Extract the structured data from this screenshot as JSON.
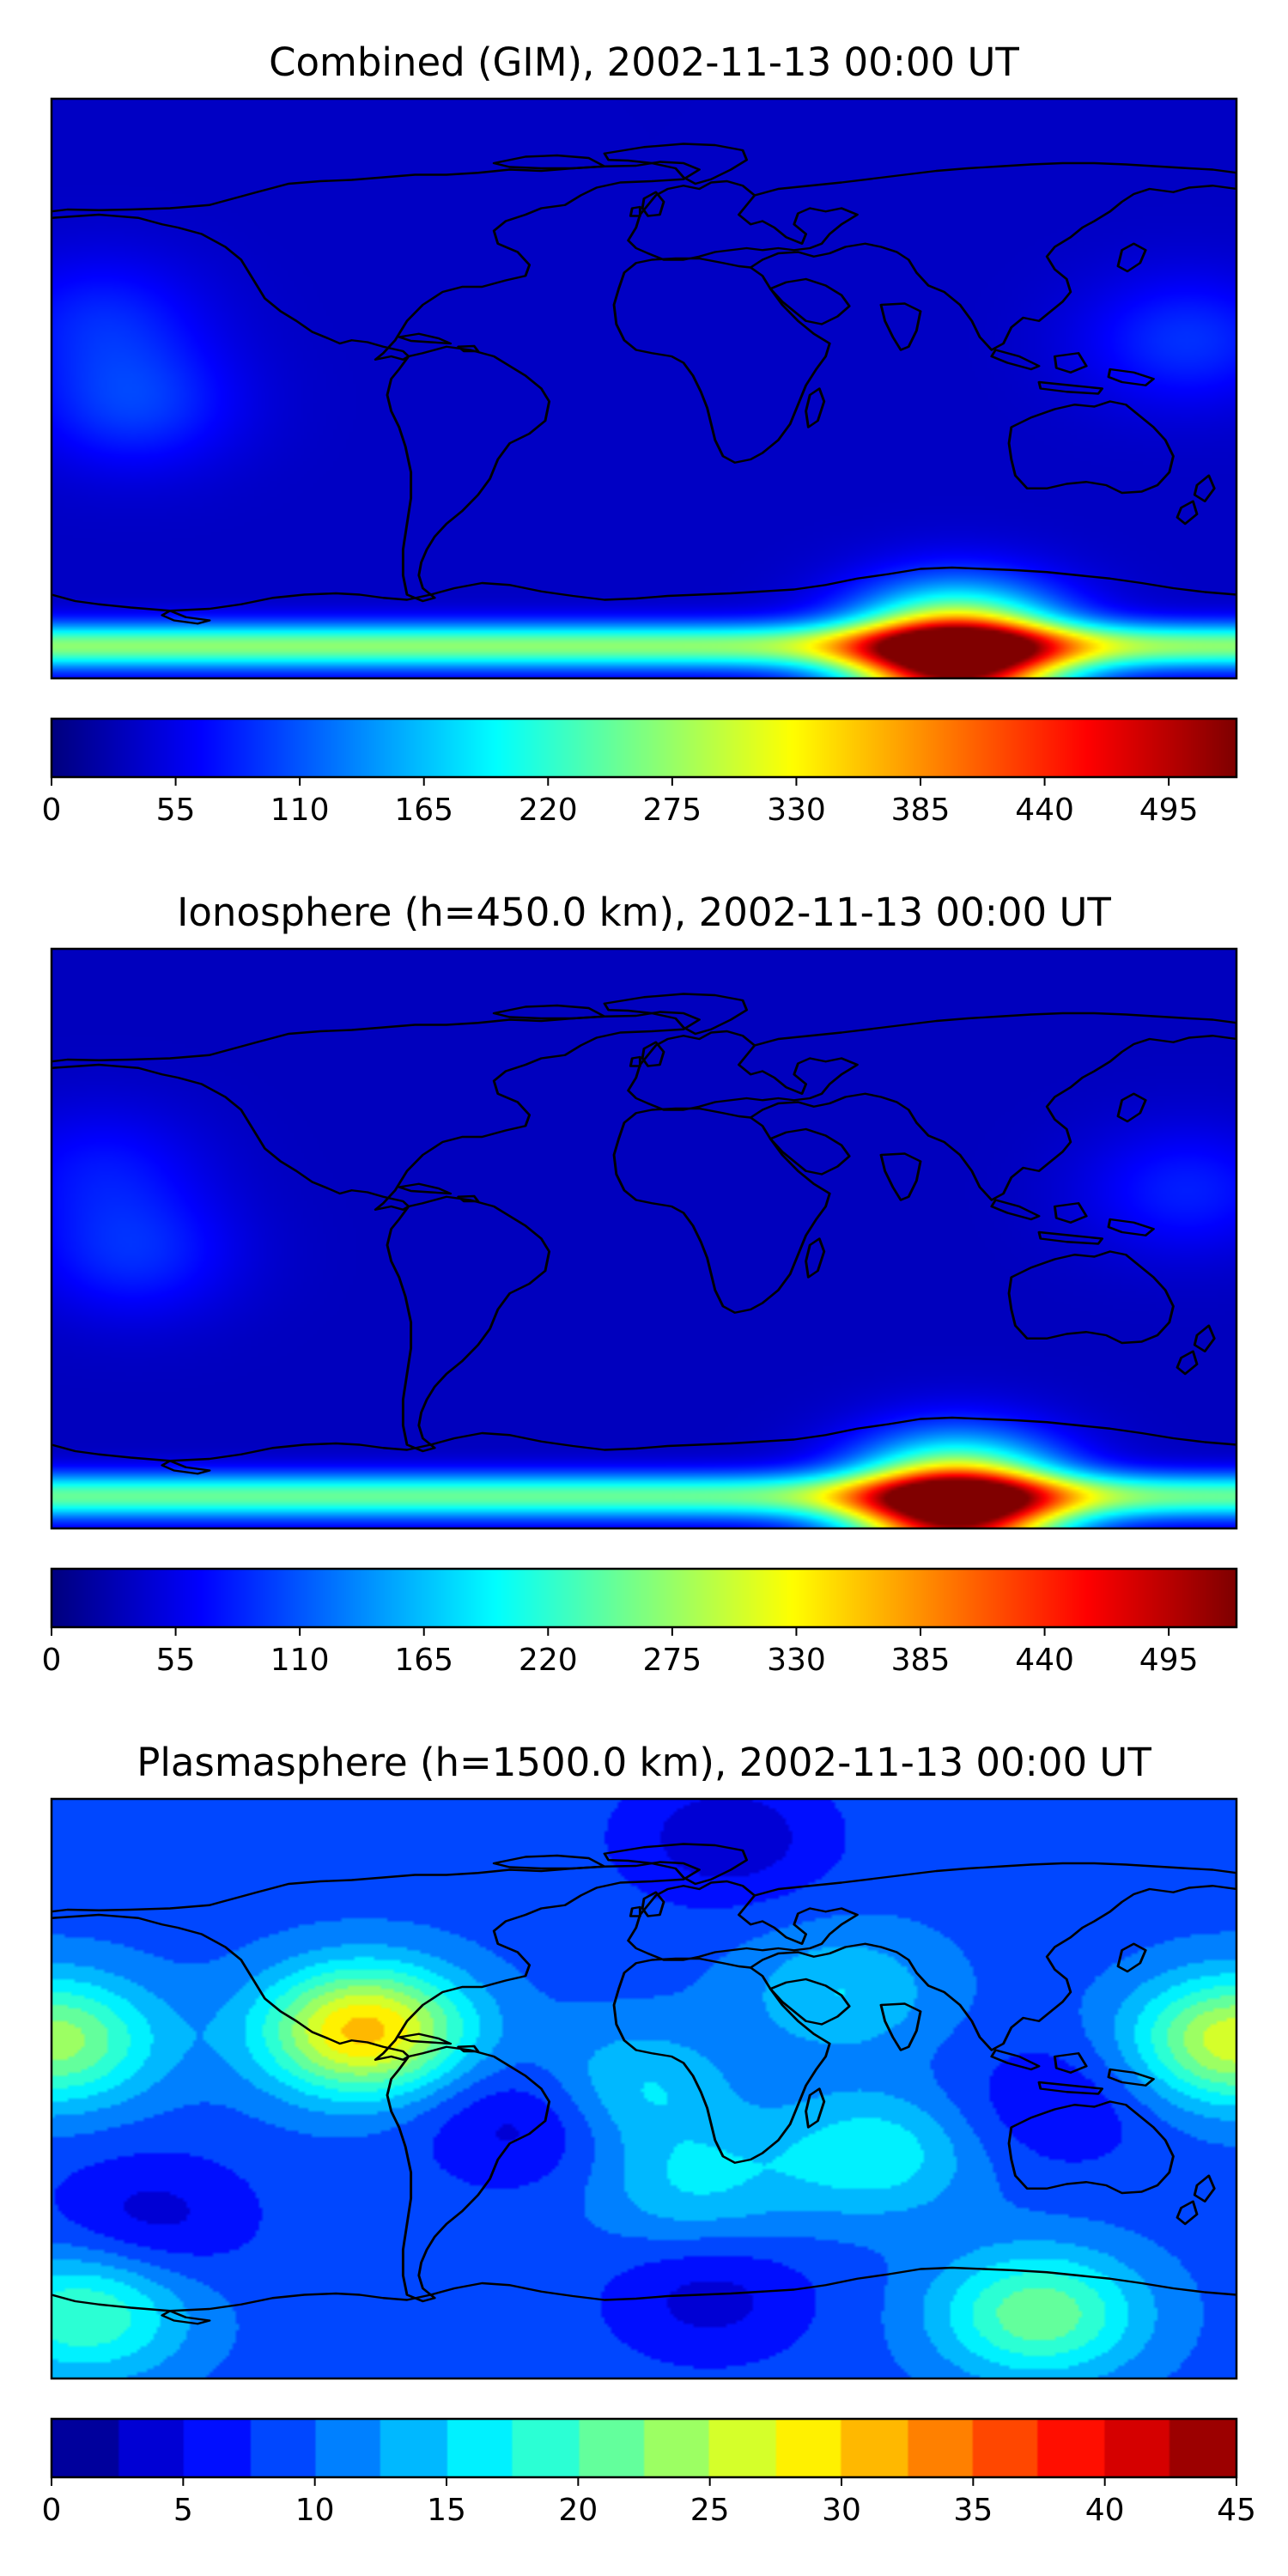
{
  "chart_data": [
    {
      "type": "heatmap",
      "title": "Combined (GIM), 2002-11-13 00:00 UT",
      "colorbar": {
        "ticks": [
          "0",
          "55",
          "110",
          "165",
          "220",
          "275",
          "330",
          "385",
          "440",
          "495"
        ],
        "range": [
          0,
          525
        ],
        "colormap": "jet",
        "style": "continuous"
      },
      "field": {
        "background": 35,
        "features": [
          {
            "label": "south-polar high",
            "lon": 95,
            "lat": -85,
            "value": 520
          },
          {
            "label": "antarctic rim band",
            "lat": -80,
            "value": 270
          },
          {
            "label": "west Pacific tongue",
            "lon": -155,
            "lat": -5,
            "value": 95
          },
          {
            "label": "west Pacific upper lobe",
            "lon": -165,
            "lat": 22,
            "value": 80
          },
          {
            "label": "east Pacific lobe",
            "lon": 165,
            "lat": 15,
            "value": 90
          }
        ]
      }
    },
    {
      "type": "heatmap",
      "title": "Ionosphere  (h=450.0 km), 2002-11-13 00:00 UT",
      "colorbar": {
        "ticks": [
          "0",
          "55",
          "110",
          "165",
          "220",
          "275",
          "330",
          "385",
          "440",
          "495"
        ],
        "range": [
          0,
          525
        ],
        "colormap": "jet",
        "style": "continuous"
      },
      "field": {
        "background": 32,
        "features": [
          {
            "label": "south-polar high",
            "lon": 95,
            "lat": -85,
            "value": 500
          },
          {
            "label": "antarctic rim band",
            "lat": -80,
            "value": 250
          },
          {
            "label": "west Pacific tongue",
            "lon": -155,
            "lat": -5,
            "value": 85
          },
          {
            "label": "west Pacific upper lobe",
            "lon": -165,
            "lat": 22,
            "value": 70
          },
          {
            "label": "east Pacific lobe",
            "lon": 165,
            "lat": 15,
            "value": 80
          }
        ]
      }
    },
    {
      "type": "heatmap",
      "title": "Plasmasphere (h=1500.0 km), 2002-11-13 00:00 UT",
      "colorbar": {
        "ticks": [
          "0",
          "5",
          "10",
          "15",
          "20",
          "25",
          "30",
          "35",
          "40",
          "45"
        ],
        "range": [
          0,
          45
        ],
        "colormap": "jet",
        "style": "discrete"
      },
      "field": {
        "background": 9,
        "features": [
          {
            "label": "South America peak",
            "lon": -85,
            "lat": 18,
            "value": 31
          },
          {
            "label": "west edge peak",
            "lon": -180,
            "lat": 15,
            "value": 24
          },
          {
            "label": "east edge peak",
            "lon": 180,
            "lat": 15,
            "value": 27
          },
          {
            "label": "south-east Antarctic",
            "lon": 120,
            "lat": -70,
            "value": 22
          },
          {
            "label": "south-west corner",
            "lon": -170,
            "lat": -70,
            "value": 20
          },
          {
            "label": "east Atlantic",
            "lon": -5,
            "lat": 0,
            "value": 16
          },
          {
            "label": "south Atlantic",
            "lon": 15,
            "lat": -30,
            "value": 15
          },
          {
            "label": "Indian Ocean",
            "lon": 70,
            "lat": -20,
            "value": 17
          },
          {
            "label": "North Africa / Asia",
            "lon": 60,
            "lat": 30,
            "value": 15
          },
          {
            "label": "Brazil low",
            "lon": -35,
            "lat": -10,
            "value": 3
          },
          {
            "label": "north polar low",
            "lon": 25,
            "lat": 78,
            "value": 3
          },
          {
            "label": "south ocean low",
            "lon": 20,
            "lat": -65,
            "value": 4
          },
          {
            "label": "south Pacific low",
            "lon": -150,
            "lat": -40,
            "value": 4
          },
          {
            "label": "Indonesia low",
            "lon": 125,
            "lat": -5,
            "value": 5
          }
        ]
      }
    }
  ]
}
